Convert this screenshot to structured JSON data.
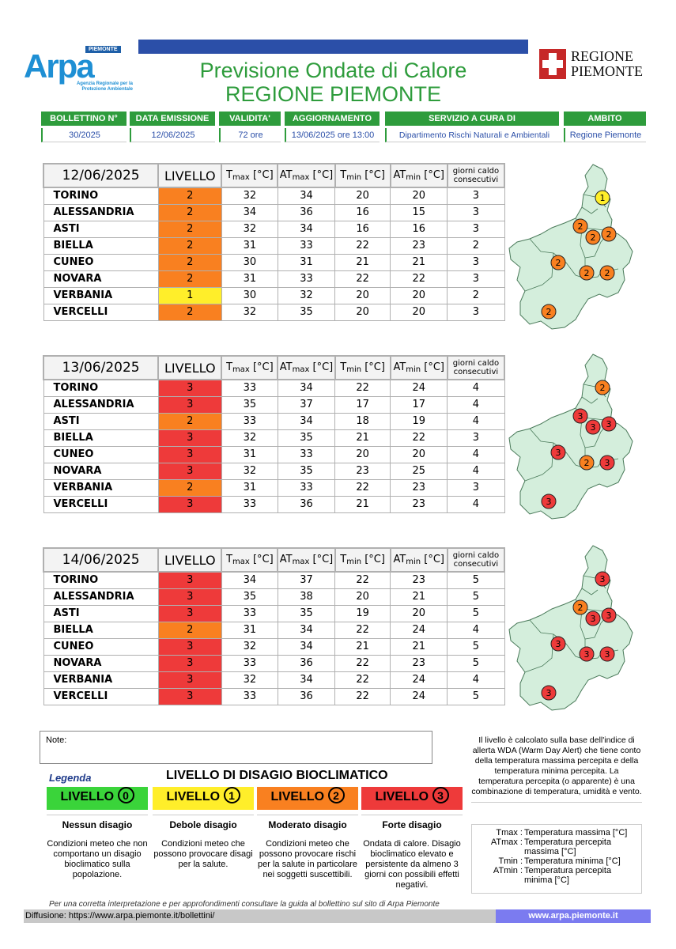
{
  "header": {
    "logo_main": "Arpa",
    "logo_badge": "PIEMONTE",
    "logo_sub": "Agenzia Regionale per la Protezione Ambientale",
    "title_line1": "Previsione Ondate di Calore",
    "title_line2": "REGIONE PIEMONTE",
    "region_logo_line1": "REGIONE",
    "region_logo_line2": "PIEMONTE"
  },
  "info": {
    "bollettino_label": "BOLLETTINO N°",
    "bollettino_value": "30/2025",
    "emissione_label": "DATA EMISSIONE",
    "emissione_value": "12/06/2025",
    "validita_label": "VALIDITA'",
    "validita_value": "72 ore",
    "aggiornamento_label": "AGGIORNAMENTO",
    "aggiornamento_value": "13/06/2025 ore 13:00",
    "servizio_label": "SERVIZIO A CURA DI",
    "servizio_value": "Dipartimento Rischi Naturali e Ambientali",
    "ambito_label": "AMBITO",
    "ambito_value": "Regione Piemonte"
  },
  "columns": {
    "livello": "LIVELLO",
    "t": "T",
    "max": "max",
    "min": "min",
    "at": "AT",
    "unit": "[°C]",
    "giorni": "giorni caldo consecutivi"
  },
  "days": [
    {
      "date": "12/06/2025",
      "rows": [
        {
          "city": "TORINO",
          "level": "2",
          "tmax": "32",
          "atmax": "34",
          "tmin": "20",
          "atmin": "20",
          "giorni": "3"
        },
        {
          "city": "ALESSANDRIA",
          "level": "2",
          "tmax": "34",
          "atmax": "36",
          "tmin": "16",
          "atmin": "15",
          "giorni": "3"
        },
        {
          "city": "ASTI",
          "level": "2",
          "tmax": "32",
          "atmax": "34",
          "tmin": "16",
          "atmin": "16",
          "giorni": "3"
        },
        {
          "city": "BIELLA",
          "level": "2",
          "tmax": "31",
          "atmax": "33",
          "tmin": "22",
          "atmin": "23",
          "giorni": "2"
        },
        {
          "city": "CUNEO",
          "level": "2",
          "tmax": "30",
          "atmax": "31",
          "tmin": "21",
          "atmin": "21",
          "giorni": "3"
        },
        {
          "city": "NOVARA",
          "level": "2",
          "tmax": "31",
          "atmax": "33",
          "tmin": "22",
          "atmin": "22",
          "giorni": "3"
        },
        {
          "city": "VERBANIA",
          "level": "1",
          "tmax": "30",
          "atmax": "32",
          "tmin": "20",
          "atmin": "20",
          "giorni": "2"
        },
        {
          "city": "VERCELLI",
          "level": "2",
          "tmax": "32",
          "atmax": "35",
          "tmin": "20",
          "atmin": "20",
          "giorni": "3"
        }
      ]
    },
    {
      "date": "13/06/2025",
      "rows": [
        {
          "city": "TORINO",
          "level": "3",
          "tmax": "33",
          "atmax": "34",
          "tmin": "22",
          "atmin": "24",
          "giorni": "4"
        },
        {
          "city": "ALESSANDRIA",
          "level": "3",
          "tmax": "35",
          "atmax": "37",
          "tmin": "17",
          "atmin": "17",
          "giorni": "4"
        },
        {
          "city": "ASTI",
          "level": "2",
          "tmax": "33",
          "atmax": "34",
          "tmin": "18",
          "atmin": "19",
          "giorni": "4"
        },
        {
          "city": "BIELLA",
          "level": "3",
          "tmax": "32",
          "atmax": "35",
          "tmin": "21",
          "atmin": "22",
          "giorni": "3"
        },
        {
          "city": "CUNEO",
          "level": "3",
          "tmax": "31",
          "atmax": "33",
          "tmin": "20",
          "atmin": "20",
          "giorni": "4"
        },
        {
          "city": "NOVARA",
          "level": "3",
          "tmax": "32",
          "atmax": "35",
          "tmin": "23",
          "atmin": "25",
          "giorni": "4"
        },
        {
          "city": "VERBANIA",
          "level": "2",
          "tmax": "31",
          "atmax": "33",
          "tmin": "22",
          "atmin": "23",
          "giorni": "3"
        },
        {
          "city": "VERCELLI",
          "level": "3",
          "tmax": "33",
          "atmax": "36",
          "tmin": "21",
          "atmin": "23",
          "giorni": "4"
        }
      ]
    },
    {
      "date": "14/06/2025",
      "rows": [
        {
          "city": "TORINO",
          "level": "3",
          "tmax": "34",
          "atmax": "37",
          "tmin": "22",
          "atmin": "23",
          "giorni": "5"
        },
        {
          "city": "ALESSANDRIA",
          "level": "3",
          "tmax": "35",
          "atmax": "38",
          "tmin": "20",
          "atmin": "21",
          "giorni": "5"
        },
        {
          "city": "ASTI",
          "level": "3",
          "tmax": "33",
          "atmax": "35",
          "tmin": "19",
          "atmin": "20",
          "giorni": "5"
        },
        {
          "city": "BIELLA",
          "level": "2",
          "tmax": "31",
          "atmax": "34",
          "tmin": "22",
          "atmin": "24",
          "giorni": "4"
        },
        {
          "city": "CUNEO",
          "level": "3",
          "tmax": "32",
          "atmax": "34",
          "tmin": "21",
          "atmin": "21",
          "giorni": "5"
        },
        {
          "city": "NOVARA",
          "level": "3",
          "tmax": "33",
          "atmax": "36",
          "tmin": "22",
          "atmin": "23",
          "giorni": "5"
        },
        {
          "city": "VERBANIA",
          "level": "3",
          "tmax": "32",
          "atmax": "34",
          "tmin": "22",
          "atmin": "24",
          "giorni": "4"
        },
        {
          "city": "VERCELLI",
          "level": "3",
          "tmax": "33",
          "atmax": "36",
          "tmin": "22",
          "atmin": "24",
          "giorni": "5"
        }
      ]
    }
  ],
  "maps": [
    {
      "verbania": "1",
      "novara": "2",
      "biella": "2",
      "vercelli": "2",
      "torino": "2",
      "asti": "2",
      "alessandria": "2",
      "cuneo": "2"
    },
    {
      "verbania": "2",
      "novara": "3",
      "biella": "3",
      "vercelli": "3",
      "torino": "3",
      "asti": "2",
      "alessandria": "3",
      "cuneo": "3"
    },
    {
      "verbania": "3",
      "novara": "3",
      "biella": "2",
      "vercelli": "3",
      "torino": "3",
      "asti": "3",
      "alessandria": "3",
      "cuneo": "3"
    }
  ],
  "level_colors": {
    "1": "#ffee2a",
    "2": "#f98020",
    "3": "#ee3a3a",
    "0": "#3ad43a"
  },
  "note_label": "Note:",
  "legend": {
    "title": "Legenda",
    "heading": "LIVELLO DI DISAGIO BIOCLIMATICO",
    "levels": [
      {
        "word": "LIVELLO",
        "num": "0",
        "name": "Nessun disagio",
        "desc": "Condizioni meteo che non comportano un disagio bioclimatico sulla popolazione.",
        "color": "#3ad43a"
      },
      {
        "word": "LIVELLO",
        "num": "1",
        "name": "Debole disagio",
        "desc": "Condizioni meteo che possono provocare disagi per la salute.",
        "color": "#ffee2a"
      },
      {
        "word": "LIVELLO",
        "num": "2",
        "name": "Moderato disagio",
        "desc": "Condizioni meteo che possono provocare rischi per la salute in particolare nei soggetti suscettibili.",
        "color": "#f98020"
      },
      {
        "word": "LIVELLO",
        "num": "3",
        "name": "Forte disagio",
        "desc": "Ondata di calore. Disagio bioclimatico elevato e persistente da almeno 3 giorni con possibili effetti negativi.",
        "color": "#ee3a3a"
      }
    ]
  },
  "side_text": "Il livello è calcolato sulla base dell'indice di allerta WDA (Warm Day Alert) che tiene conto della temperatura massima percepita e della temperatura minima percepita. La temperatura percepita (o apparente) è una combinazione di temperatura, umidità e vento.",
  "glossary": [
    {
      "k": "Tmax :",
      "v": "Temperatura massima [°C]"
    },
    {
      "k": "ATmax :",
      "v": "Temperatura percepita massima [°C]"
    },
    {
      "k": "Tmin :",
      "v": "Temperatura minima [°C]"
    },
    {
      "k": "ATmin :",
      "v": "Temperatura percepita minima [°C]"
    }
  ],
  "footer": {
    "italic": "Per una corretta interpretazione e per approfondimenti consultare la guida al bollettino sul sito di Arpa Piemonte",
    "diffusione": "Diffusione: https://www.arpa.piemonte.it/bollettini/",
    "site": "www.arpa.piemonte.it"
  }
}
